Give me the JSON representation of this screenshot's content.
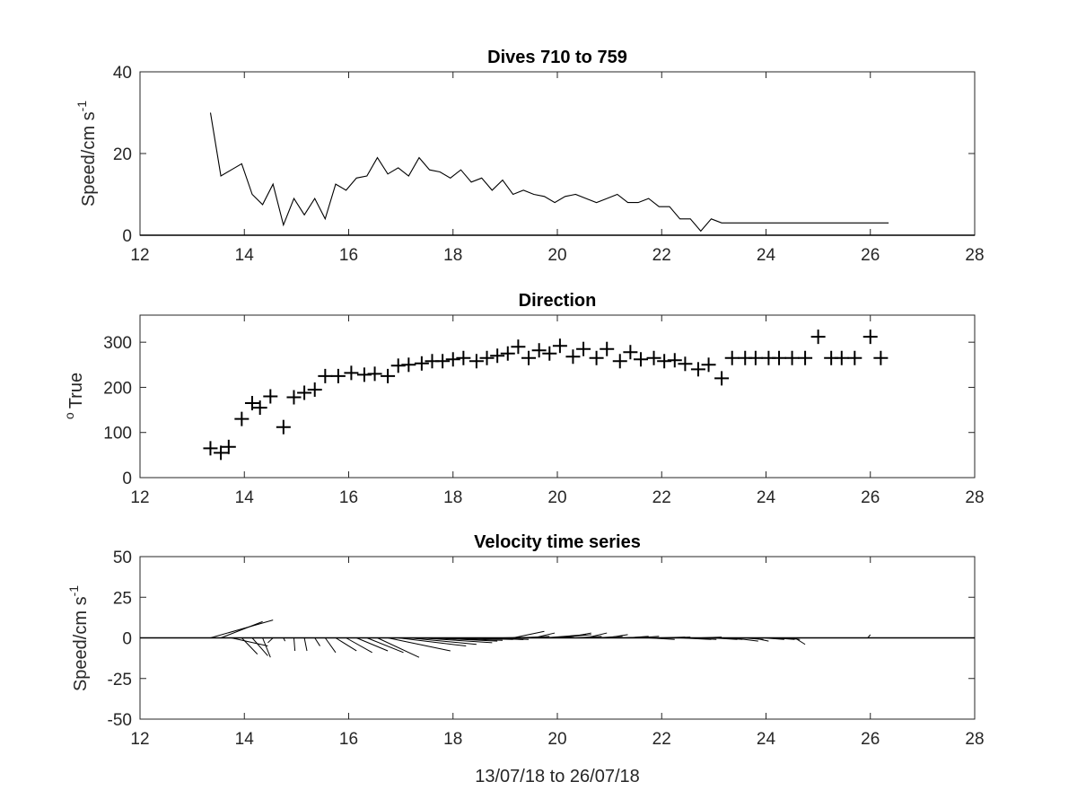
{
  "chart_data": [
    {
      "type": "line",
      "title": "Dives 710 to 759",
      "xlabel": "",
      "ylabel": "Speed/cm s",
      "ylabel_superscript": "-1",
      "xlim": [
        12,
        28
      ],
      "ylim": [
        0,
        40
      ],
      "xticks": [
        "12",
        "14",
        "16",
        "18",
        "20",
        "22",
        "24",
        "26",
        "28"
      ],
      "yticks": [
        "0",
        "20",
        "40"
      ],
      "zero_line": true,
      "series": [
        {
          "x": [
            13.35,
            13.55,
            13.75,
            13.95,
            14.15,
            14.35,
            14.55,
            14.75,
            14.95,
            15.15,
            15.35,
            15.55,
            15.75,
            15.95,
            16.15,
            16.35,
            16.55,
            16.75,
            16.95,
            17.15,
            17.35,
            17.55,
            17.75,
            17.95,
            18.15,
            18.35,
            18.55,
            18.75,
            18.95,
            19.15,
            19.35,
            19.55,
            19.75,
            19.95,
            20.15,
            20.35,
            20.55,
            20.75,
            20.95,
            21.15,
            21.35,
            21.55,
            21.75,
            21.95,
            22.15,
            22.35,
            22.55,
            22.75,
            22.95,
            23.15,
            23.35,
            23.55,
            23.75,
            23.95,
            24.15,
            24.35,
            24.55,
            24.75,
            24.95,
            25.15,
            25.35,
            25.55,
            25.75,
            25.95,
            26.15,
            26.35
          ],
          "values": [
            30,
            14.5,
            16,
            17.5,
            10,
            7.5,
            12.5,
            2.5,
            9,
            5,
            9,
            4,
            12.5,
            11,
            14,
            14.5,
            19,
            15,
            16.5,
            14.5,
            19,
            16,
            15.5,
            14,
            16,
            13,
            14,
            11,
            13.5,
            10,
            11,
            10,
            9.5,
            8,
            9.5,
            10,
            9,
            8,
            9,
            10,
            8,
            8,
            9,
            7,
            7,
            4,
            4,
            1,
            4,
            3,
            3,
            3,
            3,
            3,
            3,
            3,
            3,
            3,
            3,
            3,
            3,
            3,
            3,
            3,
            3,
            3
          ]
        }
      ]
    },
    {
      "type": "scatter",
      "title": "Direction",
      "xlabel": "",
      "ylabel": "True",
      "ylabel_superscript": "o",
      "xlim": [
        12,
        28
      ],
      "ylim": [
        0,
        360
      ],
      "xticks": [
        "12",
        "14",
        "16",
        "18",
        "20",
        "22",
        "24",
        "26",
        "28"
      ],
      "yticks": [
        "0",
        "100",
        "200",
        "300"
      ],
      "marker": "plus",
      "series": [
        {
          "x": [
            13.35,
            13.55,
            13.7,
            13.95,
            14.15,
            14.3,
            14.5,
            14.75,
            14.95,
            15.15,
            15.35,
            15.55,
            15.8,
            16.05,
            16.3,
            16.5,
            16.75,
            16.95,
            17.15,
            17.4,
            17.6,
            17.8,
            18.0,
            18.2,
            18.45,
            18.65,
            18.85,
            19.05,
            19.25,
            19.45,
            19.65,
            19.85,
            20.05,
            20.3,
            20.5,
            20.75,
            20.95,
            21.2,
            21.4,
            21.6,
            21.85,
            22.05,
            22.25,
            22.45,
            22.7,
            22.9,
            23.15,
            23.35,
            23.6,
            23.8,
            24.05,
            24.25,
            24.5,
            24.75,
            25.0,
            25.25,
            25.45,
            25.7,
            26.0,
            26.2
          ],
          "values": [
            65,
            55,
            68,
            130,
            165,
            155,
            180,
            112,
            178,
            188,
            195,
            225,
            225,
            232,
            228,
            230,
            225,
            248,
            250,
            253,
            258,
            258,
            262,
            265,
            258,
            265,
            270,
            275,
            290,
            265,
            282,
            275,
            292,
            268,
            285,
            265,
            285,
            258,
            278,
            262,
            265,
            258,
            260,
            252,
            240,
            250,
            220,
            265,
            265,
            265,
            265,
            265,
            265,
            265,
            312,
            265,
            265,
            265,
            312,
            265
          ]
        }
      ]
    },
    {
      "type": "vector",
      "title": "Velocity time series",
      "xlabel": "13/07/18 to 26/07/18",
      "ylabel": "Speed/cm s",
      "ylabel_superscript": "-1",
      "xlim": [
        12,
        28
      ],
      "ylim": [
        -50,
        50
      ],
      "xticks": [
        "12",
        "14",
        "16",
        "18",
        "20",
        "22",
        "24",
        "26",
        "28"
      ],
      "yticks": [
        "-50",
        "-25",
        "0",
        "25",
        "50"
      ],
      "zero_line": true,
      "sticks": [
        {
          "x": 13.35,
          "dx": 1.2,
          "dy": 11
        },
        {
          "x": 13.55,
          "dx": 0.8,
          "dy": 10
        },
        {
          "x": 13.75,
          "dx": 0.7,
          "dy": -5
        },
        {
          "x": 13.95,
          "dx": 0.3,
          "dy": -10
        },
        {
          "x": 14.15,
          "dx": 0.3,
          "dy": -11
        },
        {
          "x": 14.35,
          "dx": 0.15,
          "dy": -12
        },
        {
          "x": 14.55,
          "dx": -0.1,
          "dy": -3
        },
        {
          "x": 14.75,
          "dx": 0.03,
          "dy": -2
        },
        {
          "x": 14.95,
          "dx": 0.02,
          "dy": -8
        },
        {
          "x": 15.15,
          "dx": 0.05,
          "dy": -8
        },
        {
          "x": 15.35,
          "dx": 0.1,
          "dy": -5
        },
        {
          "x": 15.55,
          "dx": 0.2,
          "dy": -9
        },
        {
          "x": 15.75,
          "dx": 0.4,
          "dy": -8
        },
        {
          "x": 15.95,
          "dx": 0.5,
          "dy": -9
        },
        {
          "x": 16.15,
          "dx": 0.6,
          "dy": -8
        },
        {
          "x": 16.35,
          "dx": 0.7,
          "dy": -9
        },
        {
          "x": 16.55,
          "dx": 0.8,
          "dy": -12
        },
        {
          "x": 16.75,
          "dx": 1.2,
          "dy": -8
        },
        {
          "x": 16.95,
          "dx": 1.3,
          "dy": -5
        },
        {
          "x": 17.15,
          "dx": 1.3,
          "dy": -4
        },
        {
          "x": 17.35,
          "dx": 1.4,
          "dy": -3
        },
        {
          "x": 17.55,
          "dx": 1.3,
          "dy": -2
        },
        {
          "x": 17.75,
          "dx": 1.2,
          "dy": -1.5
        },
        {
          "x": 17.95,
          "dx": 1.2,
          "dy": -1
        },
        {
          "x": 18.15,
          "dx": 1.2,
          "dy": -1
        },
        {
          "x": 18.35,
          "dx": 1.0,
          "dy": -1
        },
        {
          "x": 18.55,
          "dx": 0.8,
          "dy": -1
        },
        {
          "x": 18.75,
          "dx": 0.7,
          "dy": -1
        },
        {
          "x": 18.95,
          "dx": 0.7,
          "dy": 0.5
        },
        {
          "x": 19.15,
          "dx": 0.6,
          "dy": 4
        },
        {
          "x": 19.35,
          "dx": 0.5,
          "dy": 1
        },
        {
          "x": 19.55,
          "dx": 0.4,
          "dy": 3
        },
        {
          "x": 19.75,
          "dx": 0.8,
          "dy": 2
        },
        {
          "x": 19.95,
          "dx": 0.7,
          "dy": 2
        },
        {
          "x": 20.15,
          "dx": 0.5,
          "dy": 3
        },
        {
          "x": 20.35,
          "dx": 0.5,
          "dy": 1
        },
        {
          "x": 20.55,
          "dx": 0.4,
          "dy": 3
        },
        {
          "x": 20.75,
          "dx": 0.5,
          "dy": 1
        },
        {
          "x": 20.95,
          "dx": 0.4,
          "dy": 2
        },
        {
          "x": 21.15,
          "dx": 0.5,
          "dy": 0.5
        },
        {
          "x": 21.35,
          "dx": 0.4,
          "dy": 1
        },
        {
          "x": 21.55,
          "dx": 0.4,
          "dy": 1
        },
        {
          "x": 21.75,
          "dx": 0.5,
          "dy": -1
        },
        {
          "x": 21.95,
          "dx": 0.5,
          "dy": 0.5
        },
        {
          "x": 22.15,
          "dx": 0.4,
          "dy": 0.5
        },
        {
          "x": 22.35,
          "dx": 0.6,
          "dy": -1
        },
        {
          "x": 22.55,
          "dx": 0.5,
          "dy": -1
        },
        {
          "x": 22.75,
          "dx": 0.4,
          "dy": 0.5
        },
        {
          "x": 22.95,
          "dx": 0.5,
          "dy": -1
        },
        {
          "x": 23.15,
          "dx": 0.4,
          "dy": -1
        },
        {
          "x": 23.35,
          "dx": 0.5,
          "dy": -2
        },
        {
          "x": 23.55,
          "dx": 0.4,
          "dy": -1
        },
        {
          "x": 23.75,
          "dx": 0.3,
          "dy": -2
        },
        {
          "x": 23.95,
          "dx": 0.4,
          "dy": -1
        },
        {
          "x": 24.15,
          "dx": 0.4,
          "dy": -1
        },
        {
          "x": 24.35,
          "dx": 0.3,
          "dy": -1
        },
        {
          "x": 24.55,
          "dx": 0.2,
          "dy": -4
        },
        {
          "x": 25.95,
          "dx": 0.05,
          "dy": 2
        }
      ]
    }
  ]
}
